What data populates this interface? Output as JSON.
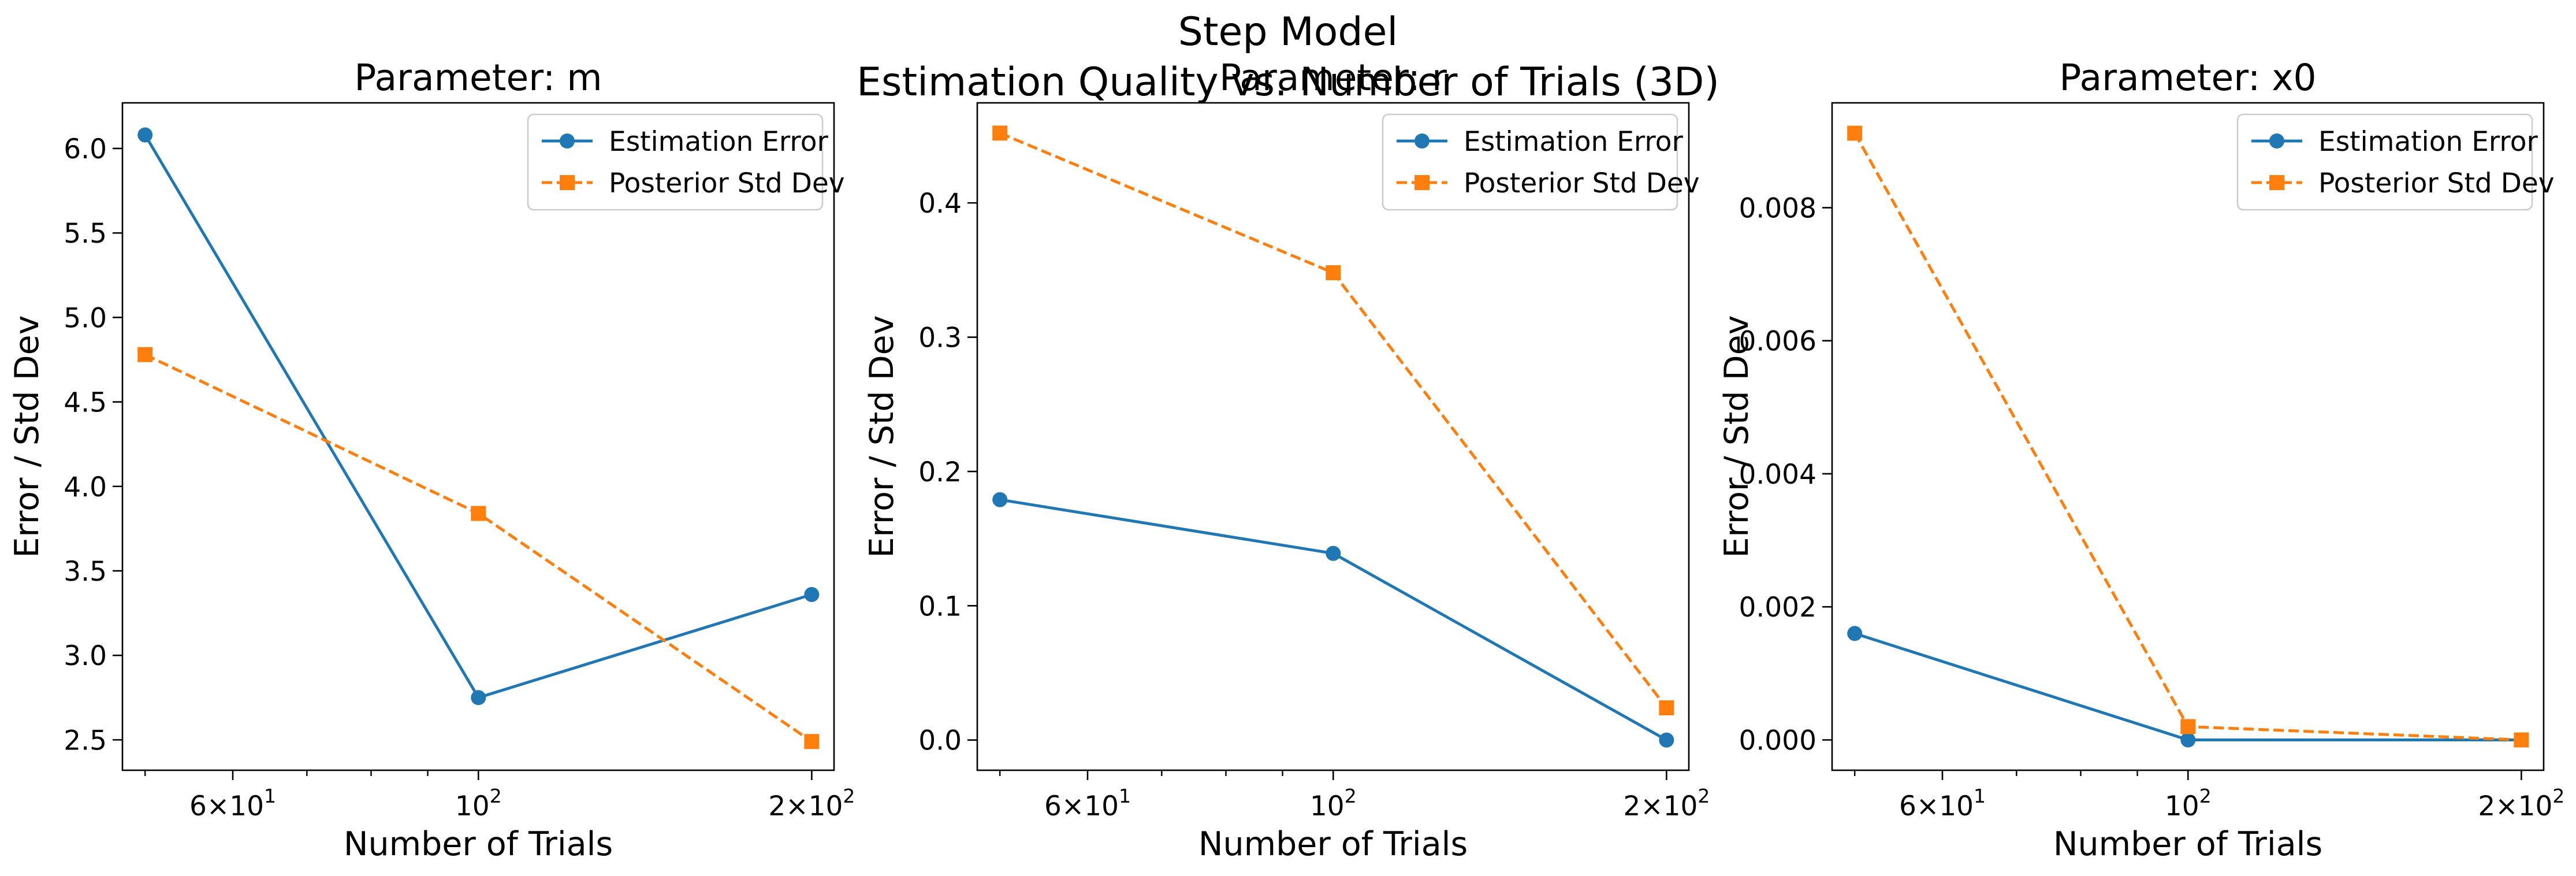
{
  "figure": {
    "suptitle_line1": "Step Model",
    "suptitle_line2": "Estimation Quality vs. Number of Trials (3D)"
  },
  "colors": {
    "estimation_error": "#1f77b4",
    "posterior_std": "#ff7f0e"
  },
  "chart_data": [
    {
      "type": "line",
      "title": "Parameter: m",
      "xlabel": "Number of Trials",
      "ylabel": "Error / Std Dev",
      "xscale": "log",
      "x": [
        50,
        100,
        200
      ],
      "xticks": [
        {
          "value": 60,
          "base": "6×10",
          "exp": "1"
        },
        {
          "value": 100,
          "base": "10",
          "exp": "2"
        },
        {
          "value": 200,
          "base": "2×10",
          "exp": "2"
        }
      ],
      "yticks": [
        "2.5",
        "3.0",
        "3.5",
        "4.0",
        "4.5",
        "5.0",
        "5.5",
        "6.0"
      ],
      "ylim": [
        2.32,
        6.27
      ],
      "legend": "top-right",
      "series": [
        {
          "name": "Estimation Error",
          "values": [
            6.08,
            2.75,
            3.36
          ],
          "marker": "circle",
          "style": "solid"
        },
        {
          "name": "Posterior Std Dev",
          "values": [
            4.78,
            3.84,
            2.49
          ],
          "marker": "square",
          "style": "dashed"
        }
      ]
    },
    {
      "type": "line",
      "title": "Parameter: r",
      "xlabel": "Number of Trials",
      "ylabel": "Error / Std Dev",
      "xscale": "log",
      "x": [
        50,
        100,
        200
      ],
      "xticks": [
        {
          "value": 60,
          "base": "6×10",
          "exp": "1"
        },
        {
          "value": 100,
          "base": "10",
          "exp": "2"
        },
        {
          "value": 200,
          "base": "2×10",
          "exp": "2"
        }
      ],
      "yticks": [
        "0.0",
        "0.1",
        "0.2",
        "0.3",
        "0.4"
      ],
      "ylim": [
        -0.0225,
        0.4745
      ],
      "legend": "top-right",
      "series": [
        {
          "name": "Estimation Error",
          "values": [
            0.179,
            0.139,
            0.0
          ],
          "marker": "circle",
          "style": "solid"
        },
        {
          "name": "Posterior Std Dev",
          "values": [
            0.452,
            0.348,
            0.024
          ],
          "marker": "square",
          "style": "dashed"
        }
      ]
    },
    {
      "type": "line",
      "title": "Parameter: x0",
      "xlabel": "Number of Trials",
      "ylabel": "Error / Std Dev",
      "xscale": "log",
      "x": [
        50,
        100,
        200
      ],
      "xticks": [
        {
          "value": 60,
          "base": "6×10",
          "exp": "1"
        },
        {
          "value": 100,
          "base": "10",
          "exp": "2"
        },
        {
          "value": 200,
          "base": "2×10",
          "exp": "2"
        }
      ],
      "yticks": [
        "0.000",
        "0.002",
        "0.004",
        "0.006",
        "0.008"
      ],
      "ylim": [
        -0.000456,
        0.009576
      ],
      "legend": "top-right",
      "series": [
        {
          "name": "Estimation Error",
          "values": [
            0.0016,
            0.0,
            0.0
          ],
          "marker": "circle",
          "style": "solid"
        },
        {
          "name": "Posterior Std Dev",
          "values": [
            0.00912,
            0.0002,
            0.0
          ],
          "marker": "square",
          "style": "dashed"
        }
      ]
    }
  ]
}
